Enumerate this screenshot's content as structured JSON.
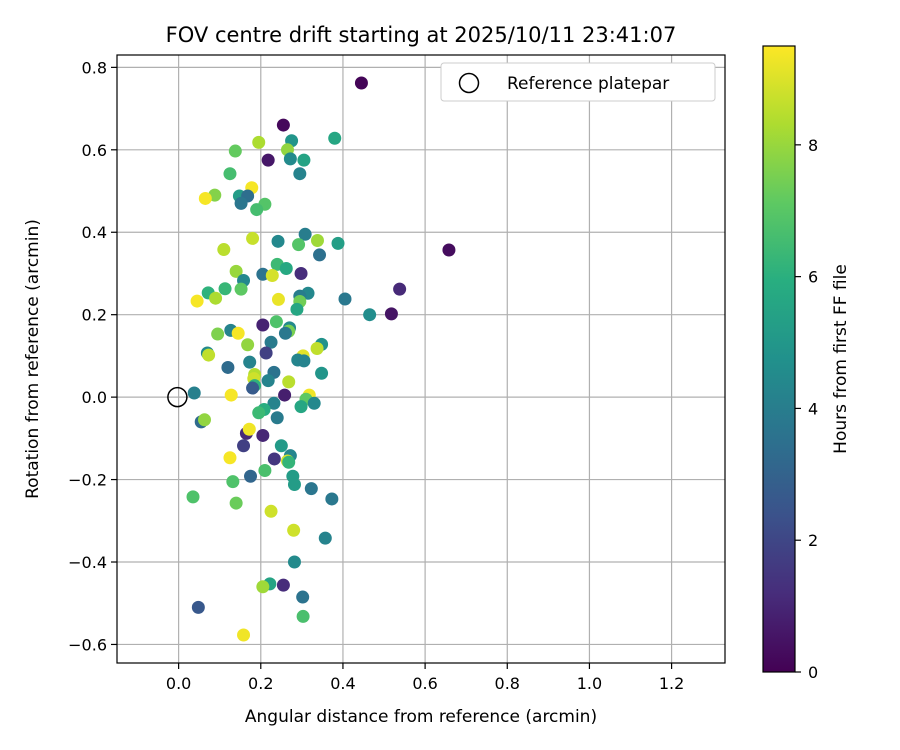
{
  "chart_data": {
    "type": "scatter",
    "title": "FOV centre drift starting at 2025/10/11 23:41:07",
    "xlabel": "Angular distance from reference (arcmin)",
    "ylabel": "Rotation from reference (arcmin)",
    "xlim": [
      -0.15,
      1.33
    ],
    "ylim": [
      -0.645,
      0.83
    ],
    "xticks": [
      "0.0",
      "0.2",
      "0.4",
      "0.6",
      "0.8",
      "1.0",
      "1.2"
    ],
    "xtick_values": [
      0,
      0.2,
      0.4,
      0.6,
      0.8,
      1.0,
      1.2
    ],
    "yticks": [
      "−0.6",
      "−0.4",
      "−0.2",
      "0.0",
      "0.2",
      "0.4",
      "0.6",
      "0.8"
    ],
    "ytick_values": [
      -0.6,
      -0.4,
      -0.2,
      0,
      0.2,
      0.4,
      0.6,
      0.8
    ],
    "grid": true,
    "legend": {
      "position": "top-right",
      "label": "Reference platepar"
    },
    "reference_point": {
      "x": 0.0,
      "y": 0.0
    },
    "colorbar": {
      "label": "Hours from first FF file",
      "colormap": "viridis",
      "range": [
        0,
        9.5
      ],
      "ticks": [
        "0",
        "2",
        "4",
        "6",
        "8"
      ],
      "tick_values": [
        0,
        2,
        4,
        6,
        8
      ]
    },
    "points": [
      {
        "x": 0.445,
        "y": 0.762,
        "h": 0.1
      },
      {
        "x": 0.255,
        "y": 0.66,
        "h": 0.2
      },
      {
        "x": 0.38,
        "y": 0.628,
        "h": 5.6
      },
      {
        "x": 0.275,
        "y": 0.622,
        "h": 4.9
      },
      {
        "x": 0.195,
        "y": 0.618,
        "h": 8.3
      },
      {
        "x": 0.265,
        "y": 0.6,
        "h": 7.9
      },
      {
        "x": 0.138,
        "y": 0.597,
        "h": 7.2
      },
      {
        "x": 0.218,
        "y": 0.575,
        "h": 0.6
      },
      {
        "x": 0.272,
        "y": 0.578,
        "h": 4.5
      },
      {
        "x": 0.305,
        "y": 0.575,
        "h": 5.5
      },
      {
        "x": 0.125,
        "y": 0.542,
        "h": 6.6
      },
      {
        "x": 0.295,
        "y": 0.542,
        "h": 4.2
      },
      {
        "x": 0.178,
        "y": 0.508,
        "h": 9.4
      },
      {
        "x": 0.088,
        "y": 0.49,
        "h": 7.7
      },
      {
        "x": 0.148,
        "y": 0.488,
        "h": 5.2
      },
      {
        "x": 0.168,
        "y": 0.488,
        "h": 3.4
      },
      {
        "x": 0.065,
        "y": 0.482,
        "h": 9.4
      },
      {
        "x": 0.152,
        "y": 0.47,
        "h": 3.7
      },
      {
        "x": 0.21,
        "y": 0.468,
        "h": 6.9
      },
      {
        "x": 0.19,
        "y": 0.455,
        "h": 6.6
      },
      {
        "x": 0.308,
        "y": 0.395,
        "h": 4.0
      },
      {
        "x": 0.18,
        "y": 0.385,
        "h": 8.7
      },
      {
        "x": 0.338,
        "y": 0.38,
        "h": 8.1
      },
      {
        "x": 0.242,
        "y": 0.378,
        "h": 4.4
      },
      {
        "x": 0.388,
        "y": 0.373,
        "h": 5.3
      },
      {
        "x": 0.292,
        "y": 0.37,
        "h": 6.9
      },
      {
        "x": 0.11,
        "y": 0.358,
        "h": 8.5
      },
      {
        "x": 0.658,
        "y": 0.357,
        "h": 0.3
      },
      {
        "x": 0.343,
        "y": 0.345,
        "h": 3.5
      },
      {
        "x": 0.24,
        "y": 0.322,
        "h": 6.4
      },
      {
        "x": 0.262,
        "y": 0.312,
        "h": 5.7
      },
      {
        "x": 0.14,
        "y": 0.305,
        "h": 8.0
      },
      {
        "x": 0.205,
        "y": 0.298,
        "h": 3.6
      },
      {
        "x": 0.298,
        "y": 0.3,
        "h": 1.2
      },
      {
        "x": 0.228,
        "y": 0.295,
        "h": 8.9
      },
      {
        "x": 0.158,
        "y": 0.283,
        "h": 4.4
      },
      {
        "x": 0.538,
        "y": 0.262,
        "h": 1.1
      },
      {
        "x": 0.113,
        "y": 0.263,
        "h": 6.3
      },
      {
        "x": 0.072,
        "y": 0.253,
        "h": 6.1
      },
      {
        "x": 0.152,
        "y": 0.262,
        "h": 7.1
      },
      {
        "x": 0.315,
        "y": 0.252,
        "h": 4.4
      },
      {
        "x": 0.295,
        "y": 0.245,
        "h": 4.0
      },
      {
        "x": 0.09,
        "y": 0.24,
        "h": 8.3
      },
      {
        "x": 0.243,
        "y": 0.237,
        "h": 9.2
      },
      {
        "x": 0.295,
        "y": 0.232,
        "h": 7.4
      },
      {
        "x": 0.045,
        "y": 0.233,
        "h": 9.4
      },
      {
        "x": 0.405,
        "y": 0.238,
        "h": 3.8
      },
      {
        "x": 0.288,
        "y": 0.213,
        "h": 5.6
      },
      {
        "x": 0.465,
        "y": 0.2,
        "h": 4.6
      },
      {
        "x": 0.518,
        "y": 0.202,
        "h": 0.5
      },
      {
        "x": 0.238,
        "y": 0.183,
        "h": 6.8
      },
      {
        "x": 0.205,
        "y": 0.175,
        "h": 0.9
      },
      {
        "x": 0.27,
        "y": 0.168,
        "h": 4.5
      },
      {
        "x": 0.268,
        "y": 0.16,
        "h": 7.5
      },
      {
        "x": 0.127,
        "y": 0.162,
        "h": 4.2
      },
      {
        "x": 0.145,
        "y": 0.155,
        "h": 9.4
      },
      {
        "x": 0.095,
        "y": 0.153,
        "h": 7.6
      },
      {
        "x": 0.26,
        "y": 0.155,
        "h": 3.8
      },
      {
        "x": 0.225,
        "y": 0.133,
        "h": 3.9
      },
      {
        "x": 0.348,
        "y": 0.128,
        "h": 4.8
      },
      {
        "x": 0.168,
        "y": 0.127,
        "h": 7.9
      },
      {
        "x": 0.337,
        "y": 0.118,
        "h": 8.6
      },
      {
        "x": 0.213,
        "y": 0.107,
        "h": 1.8
      },
      {
        "x": 0.07,
        "y": 0.107,
        "h": 4.5
      },
      {
        "x": 0.073,
        "y": 0.102,
        "h": 8.6
      },
      {
        "x": 0.303,
        "y": 0.1,
        "h": 9.1
      },
      {
        "x": 0.29,
        "y": 0.09,
        "h": 4.3
      },
      {
        "x": 0.305,
        "y": 0.088,
        "h": 4.2
      },
      {
        "x": 0.173,
        "y": 0.085,
        "h": 4.2
      },
      {
        "x": 0.12,
        "y": 0.072,
        "h": 3.3
      },
      {
        "x": 0.232,
        "y": 0.06,
        "h": 3.6
      },
      {
        "x": 0.348,
        "y": 0.058,
        "h": 4.9
      },
      {
        "x": 0.185,
        "y": 0.055,
        "h": 8.4
      },
      {
        "x": 0.183,
        "y": 0.045,
        "h": 8.8
      },
      {
        "x": 0.218,
        "y": 0.04,
        "h": 4.2
      },
      {
        "x": 0.268,
        "y": 0.037,
        "h": 8.5
      },
      {
        "x": 0.185,
        "y": 0.028,
        "h": 6.1
      },
      {
        "x": 0.18,
        "y": 0.022,
        "h": 2.7
      },
      {
        "x": 0.038,
        "y": 0.01,
        "h": 4.1
      },
      {
        "x": 0.128,
        "y": 0.005,
        "h": 9.4
      },
      {
        "x": 0.258,
        "y": 0.005,
        "h": 0.8
      },
      {
        "x": 0.318,
        "y": 0.005,
        "h": 9.3
      },
      {
        "x": 0.31,
        "y": -0.005,
        "h": 7.1
      },
      {
        "x": 0.232,
        "y": -0.015,
        "h": 4.2
      },
      {
        "x": 0.33,
        "y": -0.015,
        "h": 4.4
      },
      {
        "x": 0.298,
        "y": -0.023,
        "h": 5.6
      },
      {
        "x": 0.208,
        "y": -0.03,
        "h": 5.9
      },
      {
        "x": 0.195,
        "y": -0.038,
        "h": 6.4
      },
      {
        "x": 0.24,
        "y": -0.05,
        "h": 3.9
      },
      {
        "x": 0.055,
        "y": -0.06,
        "h": 3.3
      },
      {
        "x": 0.063,
        "y": -0.055,
        "h": 7.9
      },
      {
        "x": 0.165,
        "y": -0.088,
        "h": 1.1
      },
      {
        "x": 0.205,
        "y": -0.093,
        "h": 1.0
      },
      {
        "x": 0.172,
        "y": -0.078,
        "h": 9.3
      },
      {
        "x": 0.158,
        "y": -0.118,
        "h": 1.8
      },
      {
        "x": 0.25,
        "y": -0.118,
        "h": 5.1
      },
      {
        "x": 0.272,
        "y": -0.142,
        "h": 4.3
      },
      {
        "x": 0.125,
        "y": -0.147,
        "h": 9.4
      },
      {
        "x": 0.233,
        "y": -0.15,
        "h": 1.5
      },
      {
        "x": 0.265,
        "y": -0.155,
        "h": 8.9
      },
      {
        "x": 0.268,
        "y": -0.158,
        "h": 6.2
      },
      {
        "x": 0.21,
        "y": -0.178,
        "h": 6.7
      },
      {
        "x": 0.175,
        "y": -0.192,
        "h": 3.1
      },
      {
        "x": 0.278,
        "y": -0.192,
        "h": 5.2
      },
      {
        "x": 0.282,
        "y": -0.212,
        "h": 5.2
      },
      {
        "x": 0.132,
        "y": -0.205,
        "h": 6.8
      },
      {
        "x": 0.323,
        "y": -0.222,
        "h": 3.7
      },
      {
        "x": 0.035,
        "y": -0.242,
        "h": 6.8
      },
      {
        "x": 0.373,
        "y": -0.247,
        "h": 3.8
      },
      {
        "x": 0.14,
        "y": -0.257,
        "h": 7.3
      },
      {
        "x": 0.225,
        "y": -0.277,
        "h": 8.8
      },
      {
        "x": 0.28,
        "y": -0.323,
        "h": 8.8
      },
      {
        "x": 0.357,
        "y": -0.342,
        "h": 4.2
      },
      {
        "x": 0.282,
        "y": -0.4,
        "h": 4.5
      },
      {
        "x": 0.222,
        "y": -0.453,
        "h": 5.5
      },
      {
        "x": 0.255,
        "y": -0.456,
        "h": 1.2
      },
      {
        "x": 0.205,
        "y": -0.46,
        "h": 8.1
      },
      {
        "x": 0.302,
        "y": -0.485,
        "h": 3.6
      },
      {
        "x": 0.048,
        "y": -0.51,
        "h": 2.6
      },
      {
        "x": 0.303,
        "y": -0.532,
        "h": 6.7
      },
      {
        "x": 0.158,
        "y": -0.577,
        "h": 9.3
      }
    ]
  }
}
